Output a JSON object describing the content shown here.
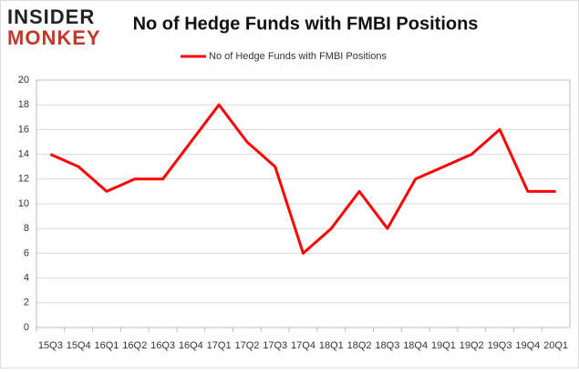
{
  "logo": {
    "line1": "INSIDER",
    "line2": "MONKEY"
  },
  "chart_data": {
    "type": "line",
    "title": "No of Hedge Funds with FMBI Positions",
    "categories": [
      "15Q3",
      "15Q4",
      "16Q1",
      "16Q2",
      "16Q3",
      "16Q4",
      "17Q1",
      "17Q2",
      "17Q3",
      "17Q4",
      "18Q1",
      "18Q2",
      "18Q3",
      "18Q4",
      "19Q1",
      "19Q2",
      "19Q3",
      "19Q4",
      "20Q1"
    ],
    "series": [
      {
        "name": "No of Hedge Funds with FMBI Positions",
        "color": "#ff0000",
        "values": [
          14,
          13,
          11,
          12,
          12,
          15,
          18,
          15,
          13,
          6,
          8,
          11,
          8,
          12,
          13,
          14,
          16,
          11,
          11
        ]
      }
    ],
    "ylim": [
      0,
      20
    ],
    "yticks": [
      0,
      2,
      4,
      6,
      8,
      10,
      12,
      14,
      16,
      18,
      20
    ],
    "grid": true,
    "legend": "top"
  }
}
